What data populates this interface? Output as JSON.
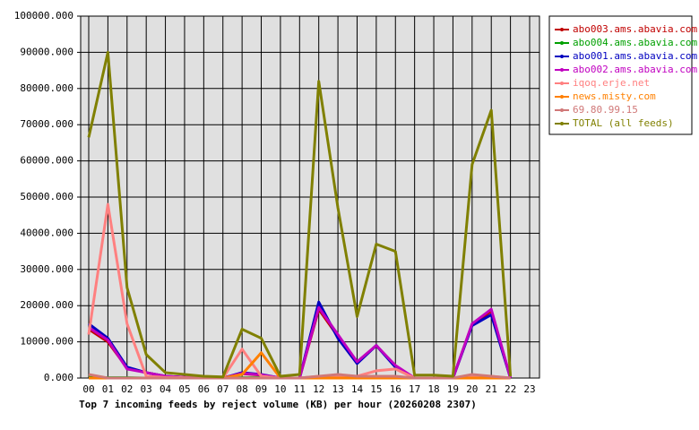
{
  "chart_data": {
    "type": "line",
    "title": "Top 7 incoming feeds by reject volume (KB) per hour (20260208 2307)",
    "categories": [
      "00",
      "01",
      "02",
      "03",
      "04",
      "05",
      "06",
      "07",
      "08",
      "09",
      "10",
      "11",
      "12",
      "13",
      "14",
      "15",
      "16",
      "17",
      "18",
      "19",
      "20",
      "21",
      "22",
      "23"
    ],
    "ylim": [
      0,
      100000
    ],
    "yticks": [
      {
        "value": 0,
        "label": "0.000"
      },
      {
        "value": 10000,
        "label": "10000.000"
      },
      {
        "value": 20000,
        "label": "20000.000"
      },
      {
        "value": 30000,
        "label": "30000.000"
      },
      {
        "value": 40000,
        "label": "40000.000"
      },
      {
        "value": 50000,
        "label": "50000.000"
      },
      {
        "value": 60000,
        "label": "60000.000"
      },
      {
        "value": 70000,
        "label": "70000.000"
      },
      {
        "value": 80000,
        "label": "80000.000"
      },
      {
        "value": 90000,
        "label": "90000.000"
      },
      {
        "value": 100000,
        "label": "100000.000"
      }
    ],
    "grid": true,
    "background": "#e0e0e0",
    "series": [
      {
        "name": "abo003.ams.abavia.com",
        "color": "#c00000",
        "values": [
          13500,
          10000,
          2800,
          1500,
          500,
          200,
          100,
          0,
          1200,
          800,
          0,
          0,
          19000,
          11500,
          4200,
          9000,
          3200,
          0,
          0,
          0,
          14800,
          18500,
          0,
          null
        ]
      },
      {
        "name": "abo004.ams.abavia.com",
        "color": "#00a000",
        "values": [
          200,
          100,
          100,
          0,
          0,
          0,
          0,
          0,
          100,
          100,
          0,
          0,
          200,
          200,
          100,
          100,
          100,
          0,
          0,
          0,
          200,
          200,
          0,
          null
        ]
      },
      {
        "name": "abo001.ams.abavia.com",
        "color": "#0000c0",
        "values": [
          15000,
          11000,
          3000,
          1500,
          500,
          200,
          100,
          0,
          1500,
          1000,
          0,
          0,
          21000,
          11000,
          4000,
          9000,
          3000,
          0,
          0,
          0,
          14500,
          17500,
          0,
          null
        ]
      },
      {
        "name": "abo002.ams.abavia.com",
        "color": "#c000c0",
        "values": [
          14000,
          10500,
          2500,
          1500,
          500,
          200,
          100,
          0,
          1300,
          900,
          0,
          0,
          19500,
          12000,
          4500,
          9000,
          3500,
          0,
          0,
          0,
          15000,
          19000,
          0,
          null
        ]
      },
      {
        "name": "iqoq.erje.net",
        "color": "#ff8080",
        "values": [
          12000,
          48000,
          15000,
          500,
          200,
          100,
          0,
          0,
          8000,
          500,
          0,
          0,
          500,
          500,
          500,
          2000,
          2500,
          0,
          0,
          0,
          500,
          500,
          0,
          null
        ]
      },
      {
        "name": "news.misty.com",
        "color": "#ff8000",
        "values": [
          0,
          0,
          0,
          0,
          0,
          0,
          0,
          0,
          1000,
          7000,
          0,
          0,
          0,
          0,
          0,
          0,
          0,
          0,
          0,
          0,
          0,
          0,
          0,
          null
        ]
      },
      {
        "name": "69.80.99.15",
        "color": "#d07878",
        "values": [
          1000,
          0,
          0,
          0,
          0,
          0,
          0,
          0,
          0,
          0,
          0,
          0,
          500,
          1000,
          500,
          500,
          500,
          0,
          0,
          0,
          1000,
          500,
          0,
          null
        ]
      },
      {
        "name": "TOTAL (all feeds)",
        "color": "#808000",
        "values": [
          66500,
          90000,
          25000,
          6500,
          1500,
          1000,
          500,
          300,
          13500,
          11000,
          500,
          1000,
          82000,
          47000,
          17000,
          37000,
          35000,
          800,
          800,
          500,
          59000,
          74000,
          500,
          null
        ]
      }
    ]
  }
}
